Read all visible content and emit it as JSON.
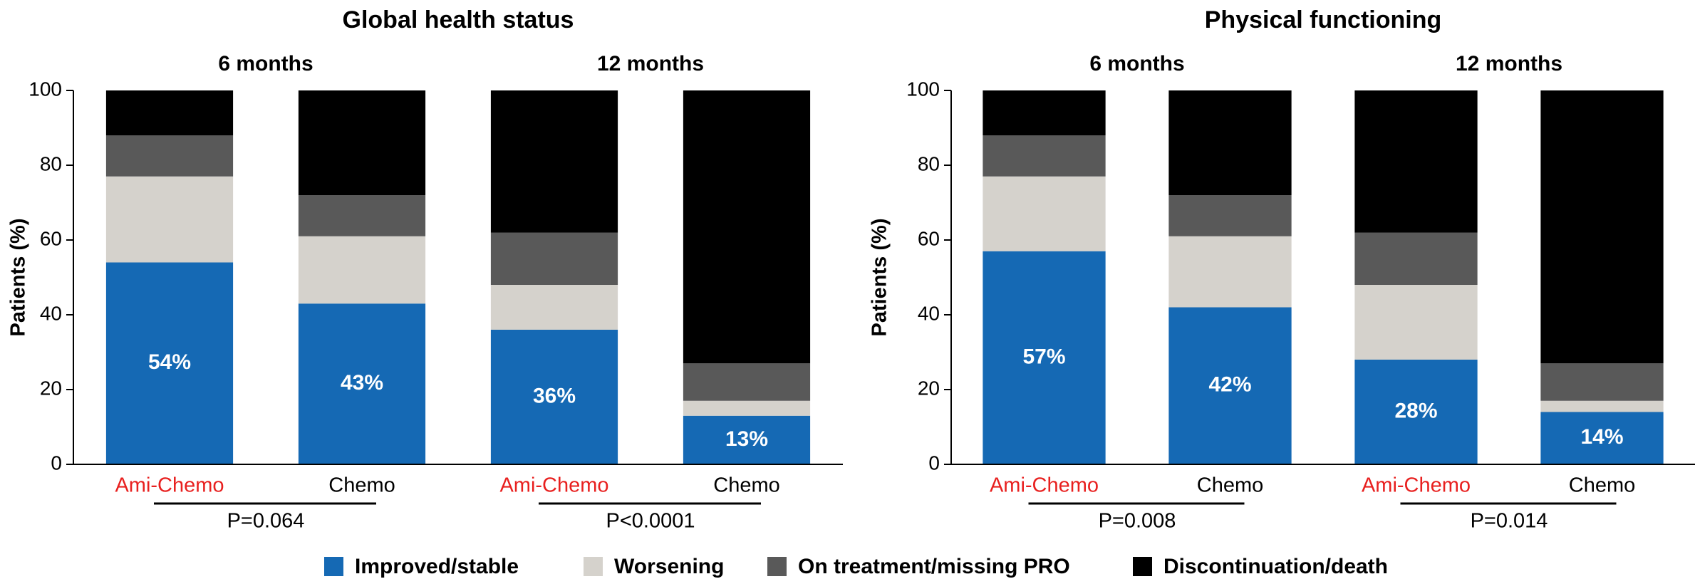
{
  "chart_data": [
    {
      "type": "bar",
      "stacked": true,
      "title": "Global health status",
      "ylabel": "Patients (%)",
      "groups": [
        {
          "label": "6 months",
          "comparison": "P=0.064"
        },
        {
          "label": "12 months",
          "comparison": "P<0.0001"
        }
      ],
      "categories": [
        "Ami-Chemo",
        "Chemo",
        "Ami-Chemo",
        "Chemo"
      ],
      "category_colors": [
        "#e8201f",
        "#000000",
        "#e8201f",
        "#000000"
      ],
      "series": [
        {
          "name": "Improved/stable",
          "color": "#1569b4",
          "values": [
            54,
            43,
            36,
            13
          ],
          "value_labels": [
            "54%",
            "43%",
            "36%",
            "13%"
          ]
        },
        {
          "name": "Worsening",
          "color": "#d5d2cc",
          "values": [
            23,
            18,
            12,
            4
          ]
        },
        {
          "name": "On treatment/missing PRO",
          "color": "#595959",
          "values": [
            11,
            11,
            14,
            10
          ]
        },
        {
          "name": "Discontinuation/death",
          "color": "#000000",
          "values": [
            12,
            28,
            38,
            73
          ]
        }
      ],
      "ylim": [
        0,
        100
      ],
      "yticks": [
        0,
        20,
        40,
        60,
        80,
        100
      ]
    },
    {
      "type": "bar",
      "stacked": true,
      "title": "Physical functioning",
      "ylabel": "Patients (%)",
      "groups": [
        {
          "label": "6 months",
          "comparison": "P=0.008"
        },
        {
          "label": "12 months",
          "comparison": "P=0.014"
        }
      ],
      "categories": [
        "Ami-Chemo",
        "Chemo",
        "Ami-Chemo",
        "Chemo"
      ],
      "category_colors": [
        "#e8201f",
        "#000000",
        "#e8201f",
        "#000000"
      ],
      "series": [
        {
          "color": "#1569b4",
          "values": [
            57,
            42,
            28,
            14
          ],
          "value_labels": [
            "57%",
            "42%",
            "28%",
            "14%"
          ]
        },
        {
          "color": "#d5d2cc",
          "values": [
            20,
            19,
            20,
            3
          ]
        },
        {
          "color": "#595959",
          "values": [
            11,
            11,
            14,
            10
          ]
        },
        {
          "color": "#000000",
          "values": [
            12,
            28,
            38,
            73
          ]
        }
      ],
      "ylim": [
        0,
        100
      ],
      "yticks": [
        0,
        20,
        40,
        60,
        80,
        100
      ]
    }
  ]
}
